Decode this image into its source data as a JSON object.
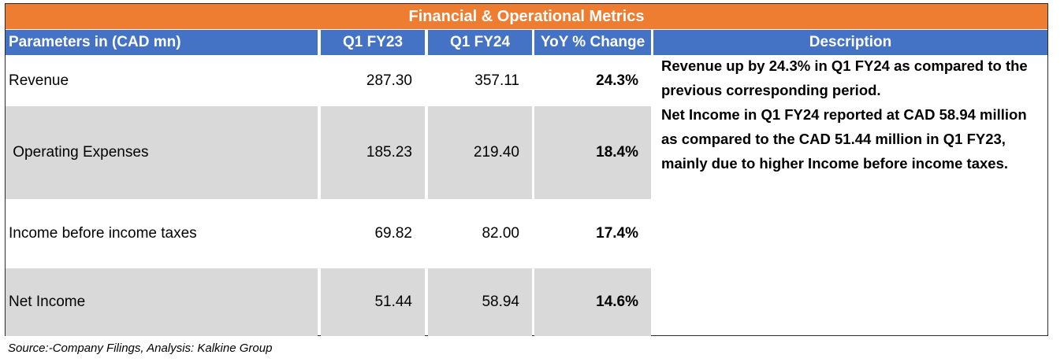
{
  "title": "Financial & Operational Metrics",
  "headers": {
    "parameter": "Parameters in (CAD mn)",
    "col1": "Q1 FY23",
    "col2": "Q1 FY24",
    "change": "YoY % Change",
    "description": "Description"
  },
  "rows": [
    {
      "label": "Revenue",
      "q1fy23": "287.30",
      "q1fy24": "357.11",
      "yoy": "24.3%"
    },
    {
      "label": " Operating Expenses",
      "q1fy23": "185.23",
      "q1fy24": "219.40",
      "yoy": "18.4%"
    },
    {
      "label": "Income before income taxes",
      "q1fy23": "69.82",
      "q1fy24": "82.00",
      "yoy": "17.4%"
    },
    {
      "label": "Net Income",
      "q1fy23": "51.44",
      "q1fy24": "58.94",
      "yoy": "14.6%"
    }
  ],
  "description": [
    "Revenue up by 24.3% in  Q1 FY24 as compared to the previous corresponding period.",
    "Net Income in  Q1 FY24 reported at CAD 58.94 million as compared to the CAD 51.44 million in Q1 FY23, mainly due to higher Income before income taxes."
  ],
  "source": "Source:-Company Filings, Analysis: Kalkine Group",
  "colors": {
    "title_bg": "#ef7d31",
    "header_bg": "#4472c4",
    "alt_row_bg": "#d9d9d9"
  }
}
